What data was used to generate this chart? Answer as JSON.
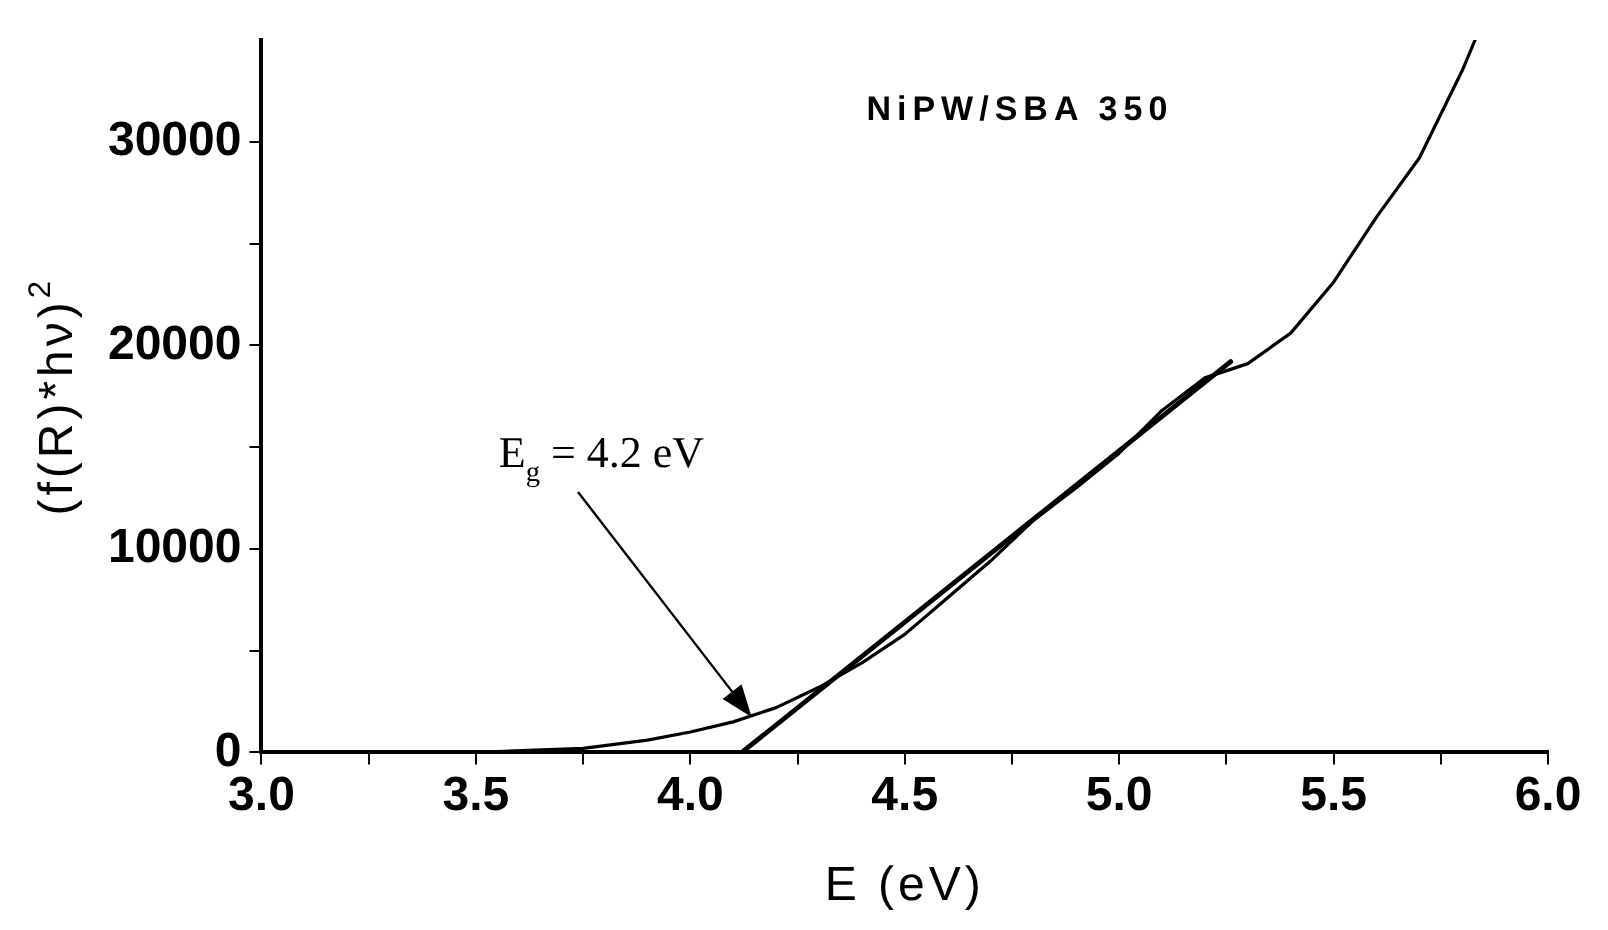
{
  "chart_data": {
    "type": "line",
    "title": "NiPW/SBA 350",
    "xlabel": "E (eV)",
    "ylabel": "(f(R)*hν)$^{2}$",
    "xlim": [
      3.0,
      6.0
    ],
    "xticks": [
      {
        "value": 3,
        "label": "3.0"
      },
      {
        "value": 3.25,
        "label": null
      },
      3.5,
      {
        "value": 3.75,
        "label": null
      },
      {
        "value": 4,
        "label": "4.0"
      },
      {
        "value": 4.25,
        "label": null
      },
      4.5,
      {
        "value": 4.75,
        "label": null
      },
      {
        "value": 5,
        "label": "5.0"
      },
      {
        "value": 5.25,
        "label": null
      },
      5.5,
      {
        "value": 5.75,
        "label": null
      },
      {
        "value": 6,
        "label": "6.0"
      }
    ],
    "ylim": [
      0,
      35000
    ],
    "yticks": [
      0,
      {
        "value": 5000,
        "label": null
      },
      10000,
      {
        "value": 15000,
        "label": null
      },
      20000,
      {
        "value": 25000,
        "label": null
      },
      30000
    ],
    "grid": false,
    "legend": false,
    "marker": "none",
    "line_style": "solid",
    "series": [
      {
        "color": "#000000",
        "x": [
          3.0,
          3.5,
          3.75,
          3.9,
          4.0,
          4.1,
          4.2,
          4.3,
          4.4,
          4.5,
          4.6,
          4.7,
          4.8,
          4.9,
          5.0,
          5.1,
          5.2,
          5.3,
          5.4,
          5.5,
          5.6,
          5.7,
          5.8,
          5.83
        ],
        "values": [
          0,
          0,
          200,
          600,
          1000,
          1500,
          2200,
          3200,
          4400,
          5800,
          7600,
          9400,
          11400,
          13000,
          14700,
          16800,
          18400,
          19100,
          20600,
          23100,
          26300,
          29200,
          33500,
          35000
        ]
      },
      {
        "type": "line",
        "color": "#000000",
        "x": [
          4.12,
          5.26
        ],
        "values": [
          0,
          19200
        ]
      }
    ],
    "annotations": [
      "E$_{g}$ = 4.2 eV"
    ]
  }
}
